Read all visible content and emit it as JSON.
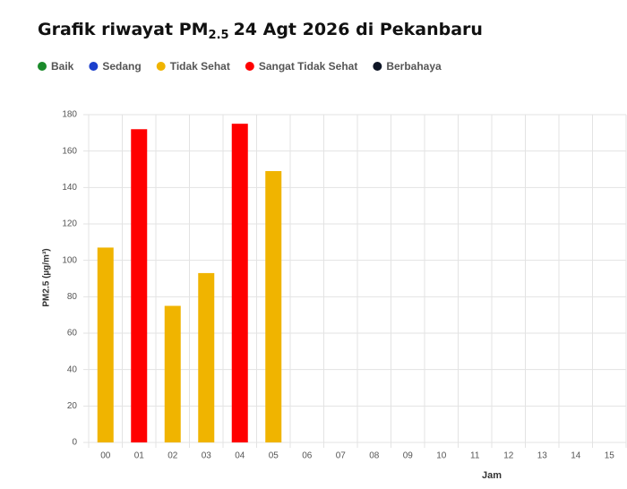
{
  "chart_data": {
    "type": "bar",
    "title": {
      "main": "Grafik riwayat PM",
      "sub": "2.5",
      "rest": "24 Agt 2026 di Pekanbaru"
    },
    "legend": [
      {
        "name": "Baik",
        "color": "#1a8a2a"
      },
      {
        "name": "Sedang",
        "color": "#1b3fcc"
      },
      {
        "name": "Tidak Sehat",
        "color": "#f0b400"
      },
      {
        "name": "Sangat Tidak Sehat",
        "color": "#ff0000"
      },
      {
        "name": "Berbahaya",
        "color": "#0f1626"
      }
    ],
    "categories": [
      "00",
      "01",
      "02",
      "03",
      "04",
      "05",
      "06",
      "07",
      "08",
      "09",
      "10",
      "11",
      "12",
      "13",
      "14",
      "15"
    ],
    "values": [
      107,
      172,
      75,
      93,
      175,
      149,
      null,
      null,
      null,
      null,
      null,
      null,
      null,
      null,
      null,
      null
    ],
    "bar_colors": [
      "#f0b400",
      "#ff0000",
      "#f0b400",
      "#f0b400",
      "#ff0000",
      "#f0b400",
      null,
      null,
      null,
      null,
      null,
      null,
      null,
      null,
      null,
      null
    ],
    "y_label": "PM2.5 (µg/m³)",
    "x_label": "Jam",
    "ylim": [
      0,
      180
    ],
    "yticks": [
      0,
      20,
      40,
      60,
      80,
      100,
      120,
      140,
      160,
      180
    ],
    "grid": true
  }
}
